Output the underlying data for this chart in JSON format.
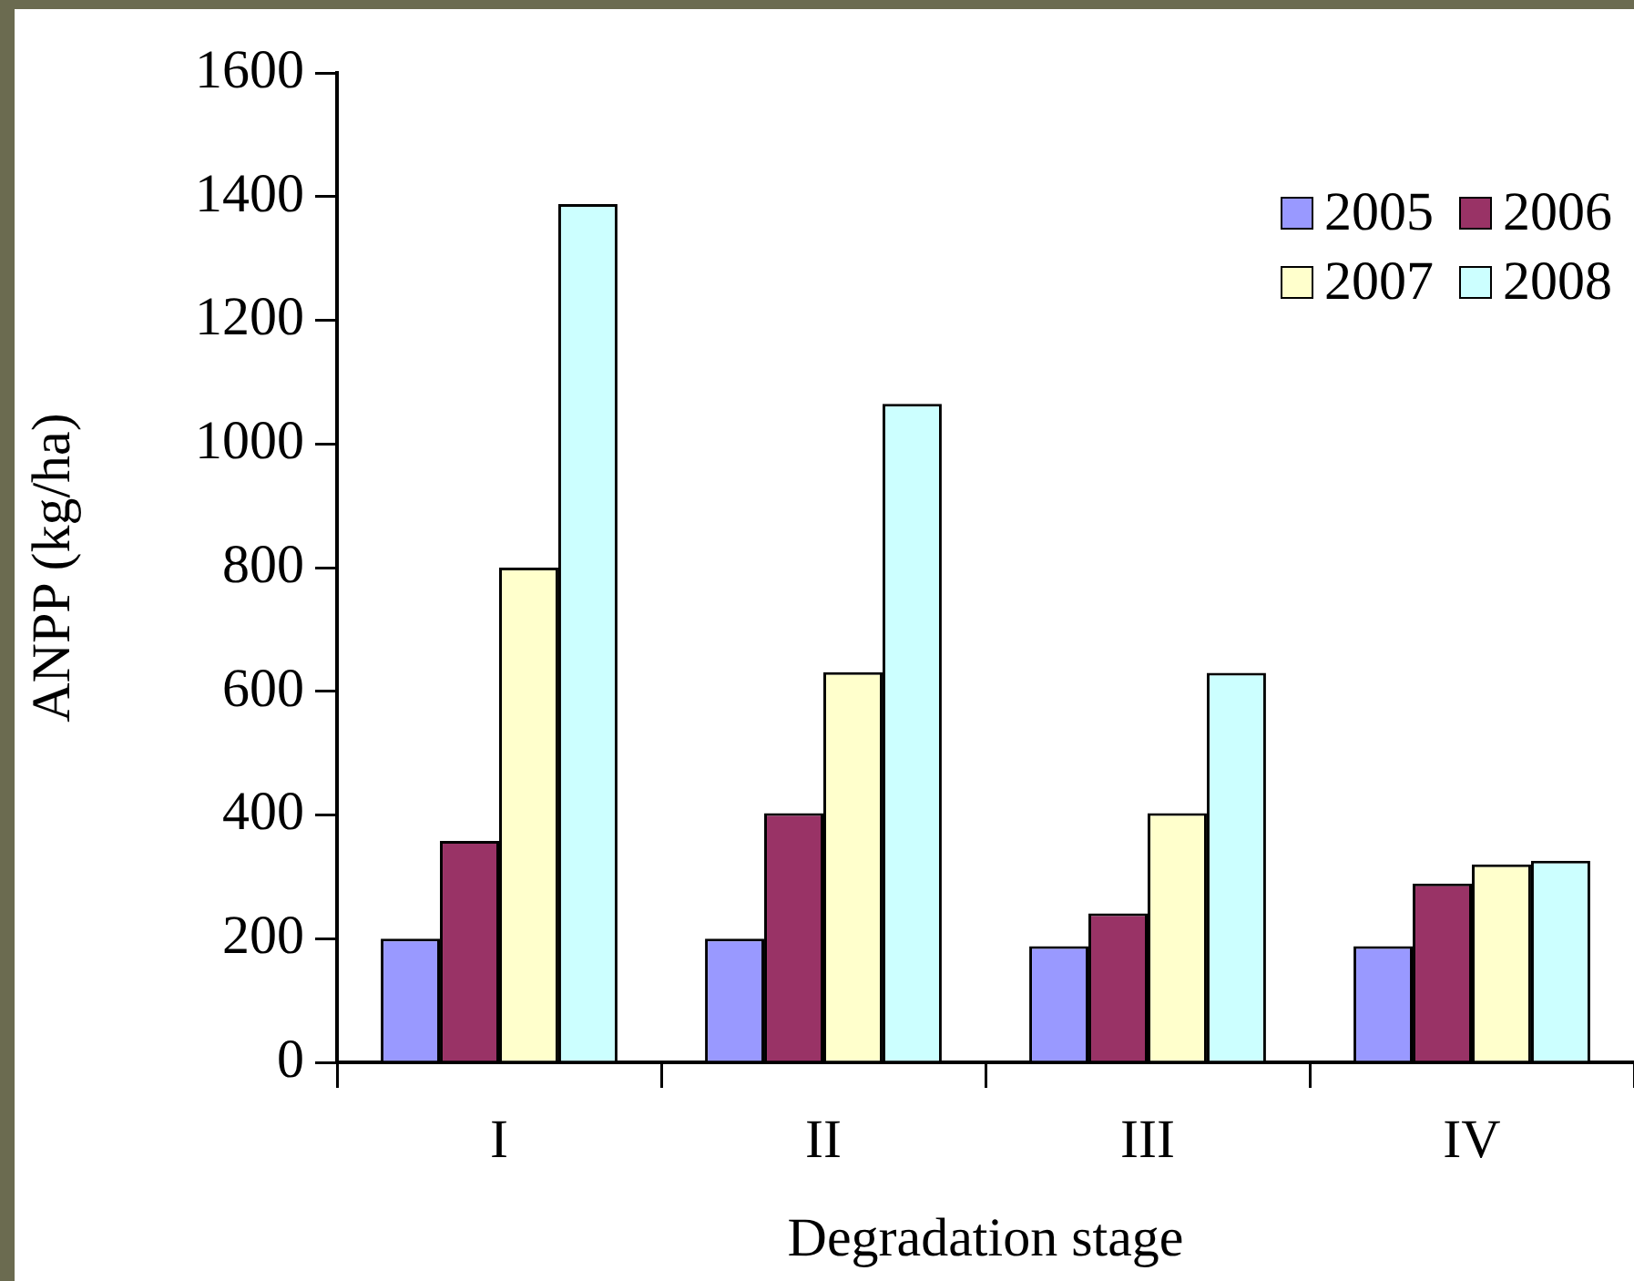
{
  "chart_data": {
    "type": "bar",
    "xlabel": "Degradation stage",
    "ylabel": "ANPP (kg/ha)",
    "categories": [
      "I",
      "II",
      "III",
      "IV"
    ],
    "series": [
      {
        "name": "2005",
        "color": "#9999ff",
        "values": [
          200,
          200,
          188,
          188
        ]
      },
      {
        "name": "2006",
        "color": "#993366",
        "values": [
          358,
          403,
          241,
          289
        ]
      },
      {
        "name": "2007",
        "color": "#ffffcc",
        "values": [
          800,
          631,
          403,
          320
        ]
      },
      {
        "name": "2008",
        "color": "#ccffff",
        "values": [
          1388,
          1065,
          630,
          326
        ]
      }
    ],
    "ylim": [
      0,
      1600
    ],
    "yticks": [
      0,
      200,
      400,
      600,
      800,
      1000,
      1200,
      1400,
      1600
    ],
    "grid": false,
    "legend": "top right"
  }
}
